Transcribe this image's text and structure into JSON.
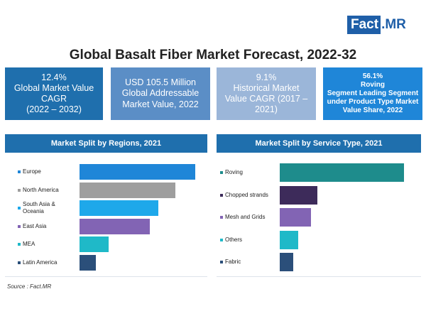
{
  "logo": {
    "part1": "Fact",
    "part2": ".MR"
  },
  "title": "Global Basalt Fiber Market Forecast, 2022-32",
  "kpis": [
    {
      "lines": [
        "12.4%",
        "Global Market Value",
        "CAGR",
        "(2022 – 2032)"
      ],
      "color": "#1f6fad"
    },
    {
      "lines": [
        "USD 105.5 Million",
        "Global Addressable",
        "Market Value, 2022"
      ],
      "color": "#5b8ec6"
    },
    {
      "lines": [
        "9.1%",
        "Historical Market",
        "Value CAGR (2017 –",
        "2021)"
      ],
      "color": "#9bb6d9"
    },
    {
      "lines": [
        "56.1%",
        "Roving",
        "Segment Leading Segment",
        "under Product Type Market",
        "Value Share, 2022"
      ],
      "color": "#1f86d8"
    }
  ],
  "source": "Source : Fact.MR",
  "chart_data": [
    {
      "type": "bar",
      "orientation": "horizontal",
      "title": "Market Split by Regions, 2021",
      "categories": [
        {
          "lines": [
            "Europe"
          ]
        },
        {
          "lines": [
            "North America"
          ]
        },
        {
          "lines": [
            "South Asia &",
            "Oceania"
          ]
        },
        {
          "lines": [
            "East Asia"
          ]
        },
        {
          "lines": [
            "MEA"
          ]
        },
        {
          "lines": [
            "Latin America"
          ]
        }
      ],
      "values": [
        100,
        83,
        68,
        61,
        25,
        14
      ],
      "colors": [
        "#1f86d8",
        "#9e9e9e",
        "#1ea8ea",
        "#8264b4",
        "#1fb9c8",
        "#2b4f7a"
      ],
      "xlim": [
        0,
        100
      ]
    },
    {
      "type": "bar",
      "orientation": "horizontal",
      "title": "Market Split by Service Type, 2021",
      "categories": [
        {
          "lines": [
            "Roving"
          ]
        },
        {
          "lines": [
            "Chopped strands"
          ]
        },
        {
          "lines": [
            "Mesh and Grids"
          ]
        },
        {
          "lines": [
            "Others"
          ]
        },
        {
          "lines": [
            "Fabric"
          ]
        }
      ],
      "values": [
        100,
        30,
        25,
        15,
        11
      ],
      "colors": [
        "#1e8c8c",
        "#3d2b5a",
        "#8264b4",
        "#1fb9c8",
        "#2b4f7a"
      ],
      "xlim": [
        0,
        100
      ]
    }
  ]
}
